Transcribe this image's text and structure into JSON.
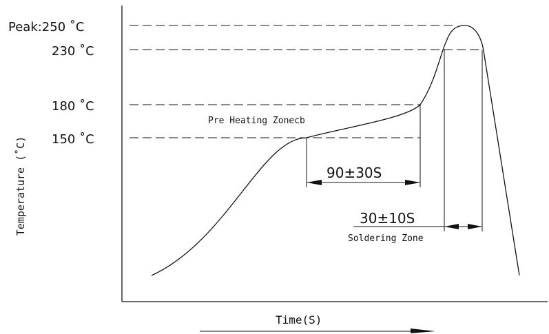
{
  "temp_labels": {
    "peak": "Peak:250 ˚C",
    "t230": "230 ˚C",
    "t180": "180 ˚C",
    "t150": "150 ˚C"
  },
  "y_axis_label": "Temperature (˚C)",
  "x_axis_label": "Time(S)",
  "zones": {
    "preheat_label": "Pre Heating Zonecb",
    "preheat_duration": "90±30S",
    "soldering_duration": "30±10S",
    "soldering_label": "Soldering Zone"
  }
}
